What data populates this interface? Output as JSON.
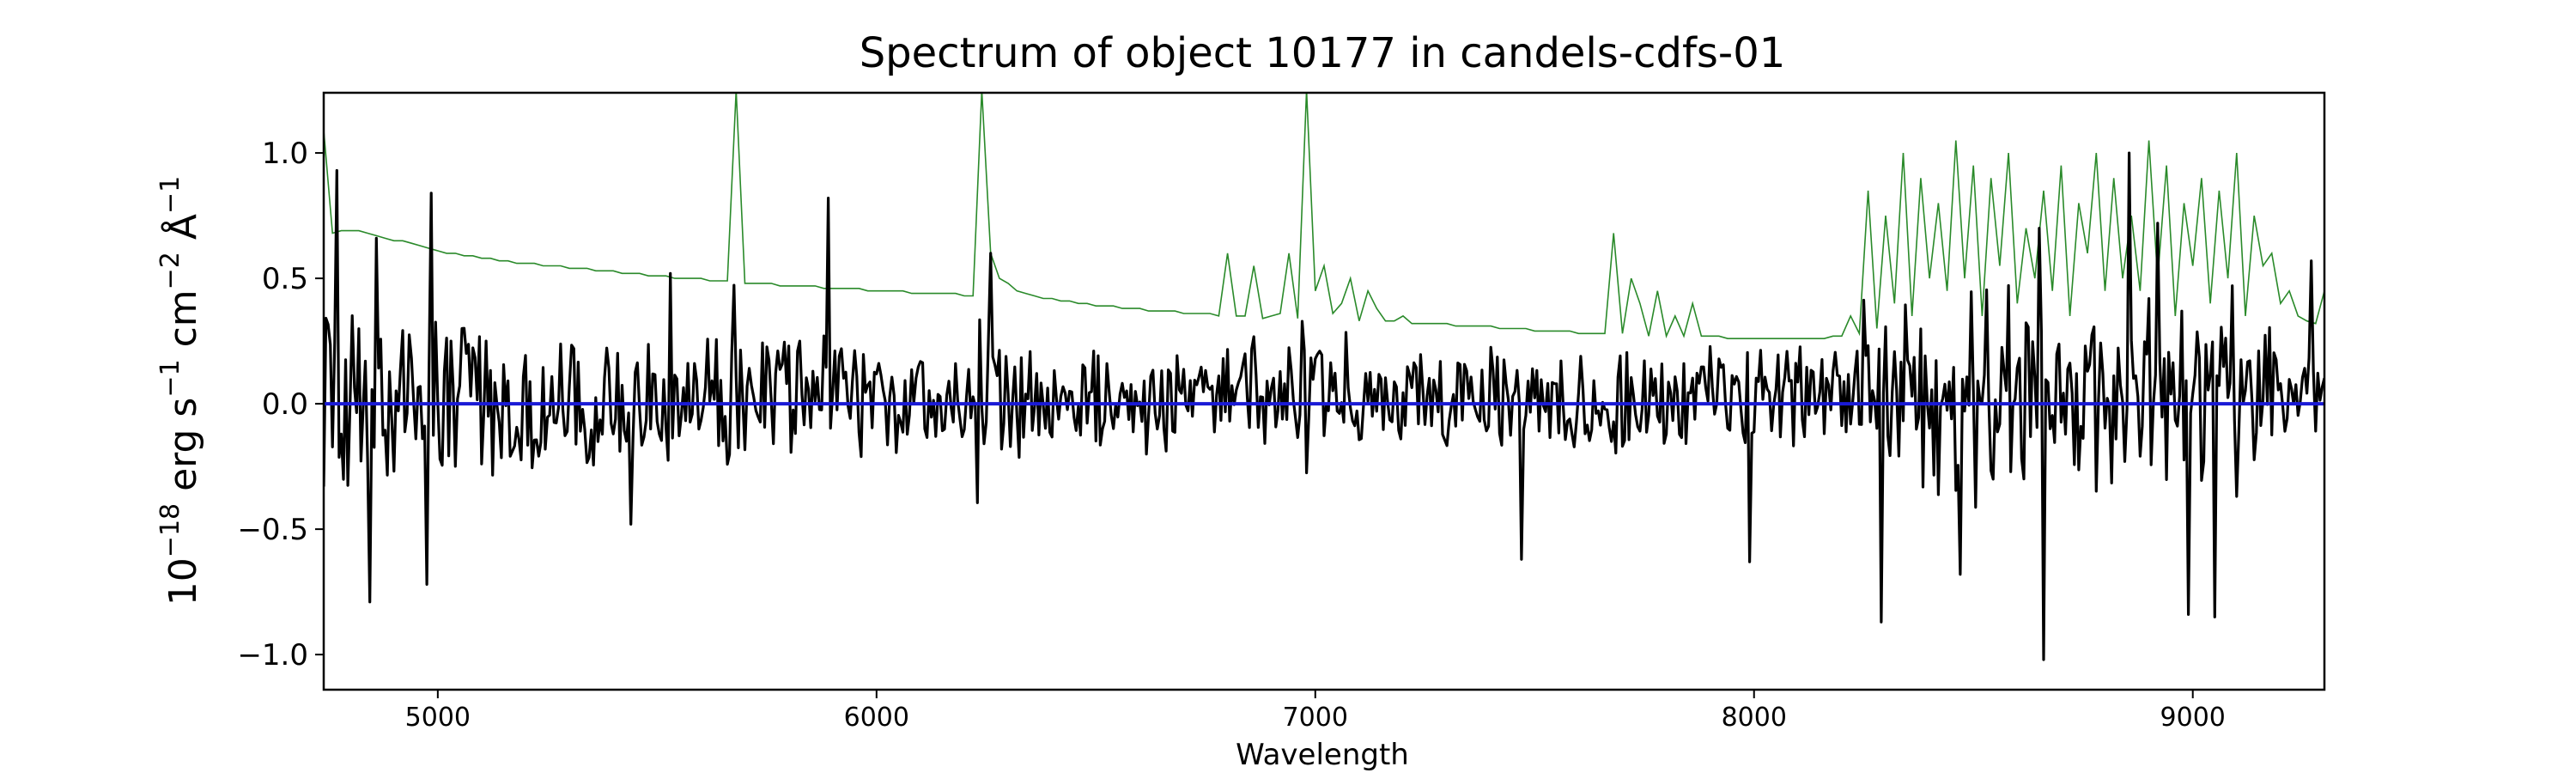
{
  "chart_data": {
    "type": "line",
    "title": "Spectrum of object 10177 in candels-cdfs-01",
    "xlabel": "Wavelength",
    "ylabel": {
      "base": "10",
      "base_exp": "−18",
      "p1": " erg s",
      "p1_exp": "−1",
      "p2": " cm",
      "p2_exp": "−2",
      "p3": " Å",
      "p3_exp": "−1"
    },
    "xlim": [
      4740,
      9300
    ],
    "ylim": [
      -1.14,
      1.24
    ],
    "x_ticks": [
      {
        "value": 5000,
        "label": "5000"
      },
      {
        "value": 6000,
        "label": "6000"
      },
      {
        "value": 7000,
        "label": "7000"
      },
      {
        "value": 8000,
        "label": "8000"
      },
      {
        "value": 9000,
        "label": "9000"
      }
    ],
    "y_ticks": [
      {
        "value": 1.0,
        "label": "1.0"
      },
      {
        "value": 0.5,
        "label": "0.5"
      },
      {
        "value": 0.0,
        "label": "0.0"
      },
      {
        "value": -0.5,
        "label": "−0.5"
      },
      {
        "value": -1.0,
        "label": "−1.0"
      }
    ],
    "grid": false,
    "series": [
      {
        "role": "noise",
        "color": "#2a8a2a",
        "step": 20,
        "x_start": 4740,
        "values": [
          1.09,
          0.68,
          0.69,
          0.69,
          0.69,
          0.68,
          0.67,
          0.66,
          0.65,
          0.65,
          0.64,
          0.63,
          0.62,
          0.61,
          0.6,
          0.6,
          0.59,
          0.59,
          0.58,
          0.58,
          0.57,
          0.57,
          0.56,
          0.56,
          0.56,
          0.55,
          0.55,
          0.55,
          0.54,
          0.54,
          0.54,
          0.53,
          0.53,
          0.53,
          0.52,
          0.52,
          0.52,
          0.51,
          0.51,
          0.51,
          0.5,
          0.5,
          0.5,
          0.5,
          0.49,
          0.49,
          0.49,
          1.25,
          0.48,
          0.48,
          0.48,
          0.48,
          0.47,
          0.47,
          0.47,
          0.47,
          0.47,
          0.46,
          0.46,
          0.46,
          0.46,
          0.46,
          0.45,
          0.45,
          0.45,
          0.45,
          0.45,
          0.44,
          0.44,
          0.44,
          0.44,
          0.44,
          0.44,
          0.43,
          0.43,
          1.25,
          0.6,
          0.5,
          0.48,
          0.45,
          0.44,
          0.43,
          0.42,
          0.42,
          0.41,
          0.41,
          0.4,
          0.4,
          0.39,
          0.39,
          0.39,
          0.38,
          0.38,
          0.38,
          0.37,
          0.37,
          0.37,
          0.37,
          0.36,
          0.36,
          0.36,
          0.36,
          0.35,
          0.6,
          0.35,
          0.35,
          0.55,
          0.34,
          0.35,
          0.36,
          0.6,
          0.34,
          1.25,
          0.45,
          0.55,
          0.36,
          0.4,
          0.5,
          0.33,
          0.45,
          0.38,
          0.33,
          0.33,
          0.35,
          0.32,
          0.32,
          0.32,
          0.32,
          0.32,
          0.31,
          0.31,
          0.31,
          0.31,
          0.31,
          0.3,
          0.3,
          0.3,
          0.3,
          0.29,
          0.29,
          0.29,
          0.29,
          0.29,
          0.28,
          0.28,
          0.28,
          0.28,
          0.68,
          0.28,
          0.5,
          0.4,
          0.27,
          0.45,
          0.27,
          0.35,
          0.27,
          0.4,
          0.27,
          0.27,
          0.27,
          0.26,
          0.26,
          0.26,
          0.26,
          0.26,
          0.26,
          0.26,
          0.26,
          0.26,
          0.26,
          0.26,
          0.26,
          0.27,
          0.27,
          0.35,
          0.28,
          0.85,
          0.3,
          0.75,
          0.4,
          1.0,
          0.35,
          0.9,
          0.5,
          0.8,
          0.45,
          1.05,
          0.5,
          0.95,
          0.35,
          0.9,
          0.55,
          1.0,
          0.4,
          0.7,
          0.5,
          0.85,
          0.45,
          0.95,
          0.35,
          0.8,
          0.6,
          1.0,
          0.45,
          0.9,
          0.5,
          0.75,
          0.45,
          1.05,
          0.5,
          0.95,
          0.35,
          0.8,
          0.55,
          0.9,
          0.4,
          0.85,
          0.5,
          1.0,
          0.35,
          0.75,
          0.55,
          0.6,
          0.4,
          0.45,
          0.35,
          0.33,
          0.32,
          0.45,
          0.31,
          0.3,
          0.3,
          0.3,
          0.5,
          0.35,
          1.1,
          0.55,
          1.25,
          0.6,
          1.15,
          0.5,
          1.25,
          0.65,
          1.25,
          0.45,
          1.05,
          0.6,
          1.2,
          0.45,
          1.25,
          0.55,
          1.25,
          0.75,
          1.0,
          0.5,
          0.7,
          0.4,
          0.9,
          0.55,
          0.95,
          0.4,
          0.8,
          0.45,
          1.0,
          0.3,
          0.55,
          0.35,
          1.25,
          0.75,
          1.25,
          0.6,
          1.25,
          0.85,
          1.25,
          0.6,
          1.25,
          0.9,
          1.25,
          0.55,
          0.8,
          0.4,
          0.45,
          0.35,
          0.35,
          0.36,
          0.6,
          0.35,
          0.55,
          0.38,
          0.35,
          0.55,
          0.37,
          0.36,
          0.36
        ]
      },
      {
        "role": "flux",
        "color": "#000000",
        "step": 5,
        "x_start": 4740,
        "seed": 10177,
        "values_note": "",
        "spikes": [
          {
            "x": 4845,
            "y": -0.79
          },
          {
            "x": 4975,
            "y": -0.72
          },
          {
            "x": 4985,
            "y": 0.84
          },
          {
            "x": 5440,
            "y": -0.48
          },
          {
            "x": 5530,
            "y": 0.52
          },
          {
            "x": 5890,
            "y": 0.82
          },
          {
            "x": 7470,
            "y": -0.62
          },
          {
            "x": 7990,
            "y": -0.63
          },
          {
            "x": 8290,
            "y": -0.87
          },
          {
            "x": 8470,
            "y": -0.68
          },
          {
            "x": 8660,
            "y": -1.02
          },
          {
            "x": 8650,
            "y": 0.7
          },
          {
            "x": 8855,
            "y": 1.0
          },
          {
            "x": 8990,
            "y": -0.84
          },
          {
            "x": 9050,
            "y": -0.85
          },
          {
            "x": 4770,
            "y": 0.93
          },
          {
            "x": 6260,
            "y": 0.6
          },
          {
            "x": 4860,
            "y": 0.66
          },
          {
            "x": 8920,
            "y": 0.72
          },
          {
            "x": 9270,
            "y": 0.57
          }
        ]
      },
      {
        "role": "zero",
        "color": "#1a1ad6",
        "x": [
          4740,
          9300
        ],
        "values": [
          0,
          0
        ]
      }
    ]
  }
}
